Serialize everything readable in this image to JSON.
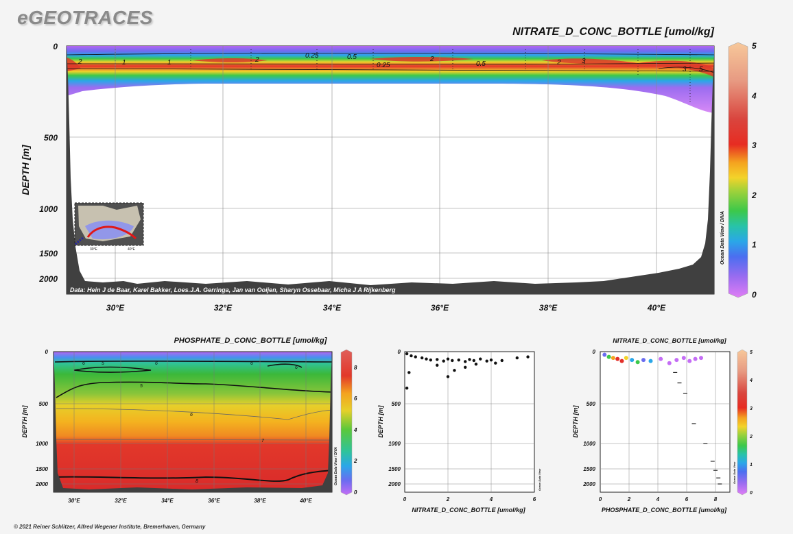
{
  "brand": "eGEOTRACES",
  "footer": "© 2021 Reiner Schlitzer, Alfred Wegener Institute, Bremerhaven, Germany",
  "colors": {
    "accent": "#8a8a8a",
    "land": "#404040",
    "contour": "#111111"
  },
  "chart_data": [
    {
      "type": "heatmap",
      "title": "NITRATE_D_CONC_BOTTLE [umol/kg]",
      "ylabel": "DEPTH [m]",
      "xlabel": "",
      "x_ticks": [
        "30°E",
        "32°E",
        "34°E",
        "36°E",
        "38°E",
        "40°E"
      ],
      "y_ticks": [
        "0",
        "500",
        "1000",
        "1500",
        "2000"
      ],
      "colorbar_ticks": [
        "0",
        "1",
        "2",
        "3",
        "4",
        "5"
      ],
      "colorbar_range": [
        0,
        5
      ],
      "contour_labels": [
        "2",
        "1",
        "1",
        "2",
        "0.25",
        "0.5",
        "0.25",
        "2",
        "0.5",
        "2",
        "3",
        "3",
        "5"
      ],
      "attribution": "Data: Hein J de Baar, Karel Bakker, Loes.J.A. Gerringa, Jan van Ooijen, Sharyn Ossebaar, Micha J A Rijkenberg",
      "side_label": "Ocean Data View / DIVA",
      "inset_ticks": [
        "30°E",
        "40°E"
      ],
      "profiles": [
        {
          "lon": 29.5,
          "depth_m": 0,
          "nitrate": 0.3
        },
        {
          "lon": 29.5,
          "depth_m": 80,
          "nitrate": 2.4
        },
        {
          "lon": 31.0,
          "depth_m": 85,
          "nitrate": 1.0
        },
        {
          "lon": 33.0,
          "depth_m": 85,
          "nitrate": 2.0
        },
        {
          "lon": 35.0,
          "depth_m": 80,
          "nitrate": 0.5
        },
        {
          "lon": 36.0,
          "depth_m": 80,
          "nitrate": 2.0
        },
        {
          "lon": 38.5,
          "depth_m": 85,
          "nitrate": 2.5
        },
        {
          "lon": 40.5,
          "depth_m": 100,
          "nitrate": 4.5
        },
        {
          "lon": 36.0,
          "depth_m": 250,
          "nitrate": 0.05
        }
      ]
    },
    {
      "type": "heatmap",
      "title": "PHOSPHATE_D_CONC_BOTTLE [umol/kg]",
      "ylabel": "DEPTH [m]",
      "xlabel": "",
      "x_ticks": [
        "30°E",
        "32°E",
        "34°E",
        "36°E",
        "38°E",
        "40°E"
      ],
      "y_ticks": [
        "0",
        "500",
        "1000",
        "1500",
        "2000"
      ],
      "colorbar_ticks": [
        "0",
        "2",
        "4",
        "6",
        "8"
      ],
      "colorbar_range": [
        0,
        9
      ],
      "contour_labels": [
        "6",
        "5",
        "6",
        "6",
        "6",
        "5",
        "6",
        "7",
        "8"
      ],
      "side_label": "Ocean Data View / DIVA"
    },
    {
      "type": "scatter",
      "title": "",
      "xlabel": "NITRATE_D_CONC_BOTTLE [umol/kg]",
      "ylabel": "DEPTH [m]",
      "x_ticks": [
        "0",
        "2",
        "4",
        "6"
      ],
      "y_ticks": [
        "0",
        "500",
        "1000",
        "1500",
        "2000"
      ],
      "xlim": [
        0,
        6
      ],
      "side_label": "Ocean Data View",
      "points": [
        {
          "x": 0.1,
          "y": 20
        },
        {
          "x": 0.3,
          "y": 40
        },
        {
          "x": 0.5,
          "y": 50
        },
        {
          "x": 0.8,
          "y": 60
        },
        {
          "x": 1.0,
          "y": 70
        },
        {
          "x": 1.2,
          "y": 80
        },
        {
          "x": 1.5,
          "y": 75
        },
        {
          "x": 1.8,
          "y": 90
        },
        {
          "x": 2.0,
          "y": 70
        },
        {
          "x": 2.2,
          "y": 85
        },
        {
          "x": 2.5,
          "y": 80
        },
        {
          "x": 2.8,
          "y": 95
        },
        {
          "x": 3.0,
          "y": 75
        },
        {
          "x": 3.2,
          "y": 85
        },
        {
          "x": 3.5,
          "y": 70
        },
        {
          "x": 3.8,
          "y": 90
        },
        {
          "x": 4.0,
          "y": 80
        },
        {
          "x": 4.2,
          "y": 110
        },
        {
          "x": 4.5,
          "y": 85
        },
        {
          "x": 5.2,
          "y": 60
        },
        {
          "x": 5.7,
          "y": 50
        },
        {
          "x": 0.2,
          "y": 200
        },
        {
          "x": 0.1,
          "y": 350
        },
        {
          "x": 1.5,
          "y": 130
        },
        {
          "x": 2.0,
          "y": 240
        },
        {
          "x": 2.3,
          "y": 180
        },
        {
          "x": 2.8,
          "y": 150
        },
        {
          "x": 3.3,
          "y": 120
        }
      ]
    },
    {
      "type": "scatter",
      "title": "NITRATE_D_CONC_BOTTLE [umol/kg]",
      "xlabel": "PHOSPHATE_D_CONC_BOTTLE [umol/kg]",
      "ylabel": "DEPTH [m]",
      "x_ticks": [
        "0",
        "2",
        "4",
        "6",
        "8"
      ],
      "y_ticks": [
        "0",
        "500",
        "1000",
        "1500",
        "2000"
      ],
      "xlim": [
        0,
        9
      ],
      "colorbar_ticks": [
        "0",
        "1",
        "2",
        "3",
        "4",
        "5"
      ],
      "colorbar_range": [
        0,
        5
      ],
      "side_label": "Ocean Data View",
      "points": [
        {
          "x": 0.3,
          "y": 30,
          "c": 0.5
        },
        {
          "x": 0.6,
          "y": 50,
          "c": 1.5
        },
        {
          "x": 0.9,
          "y": 60,
          "c": 3.0
        },
        {
          "x": 1.2,
          "y": 70,
          "c": 4.5
        },
        {
          "x": 1.5,
          "y": 90,
          "c": 4.0
        },
        {
          "x": 1.8,
          "y": 60,
          "c": 2.5
        },
        {
          "x": 2.2,
          "y": 80,
          "c": 1.0
        },
        {
          "x": 2.6,
          "y": 100,
          "c": 2.0
        },
        {
          "x": 3.0,
          "y": 80,
          "c": 0.5
        },
        {
          "x": 3.5,
          "y": 90,
          "c": 1.2
        },
        {
          "x": 4.2,
          "y": 70,
          "c": 0.3
        },
        {
          "x": 4.8,
          "y": 110,
          "c": 0.2
        },
        {
          "x": 5.3,
          "y": 80,
          "c": 0.1
        },
        {
          "x": 5.8,
          "y": 60,
          "c": 0.1
        },
        {
          "x": 6.2,
          "y": 90,
          "c": 0.05
        },
        {
          "x": 6.6,
          "y": 70,
          "c": 0.05
        },
        {
          "x": 7.0,
          "y": 60,
          "c": 0.0
        },
        {
          "x": 5.2,
          "y": 200,
          "c": 0.0
        },
        {
          "x": 5.5,
          "y": 300,
          "c": 0.0
        },
        {
          "x": 5.9,
          "y": 400,
          "c": 0.0
        },
        {
          "x": 6.5,
          "y": 750,
          "c": 0.0
        },
        {
          "x": 7.3,
          "y": 1000,
          "c": 0.0
        },
        {
          "x": 7.8,
          "y": 1350,
          "c": 0.0
        },
        {
          "x": 8.0,
          "y": 1550,
          "c": 0.0
        },
        {
          "x": 8.2,
          "y": 1800,
          "c": 0.0
        },
        {
          "x": 8.3,
          "y": 2000,
          "c": 0.0
        }
      ]
    }
  ]
}
